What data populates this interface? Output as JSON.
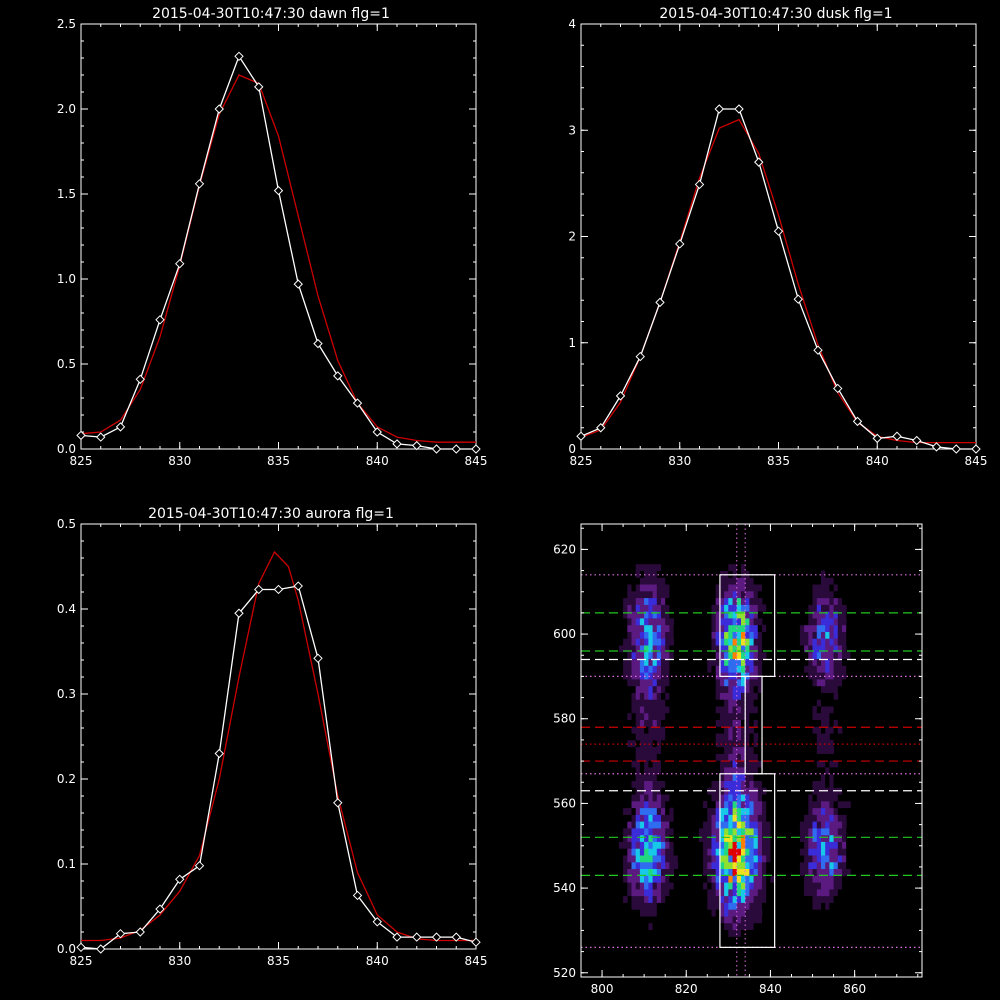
{
  "figure": {
    "background": "#000000",
    "axis_color": "#ffffff",
    "measured_color": "#ffffff",
    "fit_color": "#cc0000"
  },
  "chart_data": [
    {
      "id": "dawn",
      "type": "line",
      "title": "2015-04-30T10:47:30 dawn flg=1",
      "xlim": [
        825,
        845
      ],
      "ylim": [
        0,
        2.5
      ],
      "xticks": [
        "825",
        "830",
        "835",
        "840",
        "845"
      ],
      "yticks": [
        "0.0",
        "0.5",
        "1.0",
        "1.5",
        "2.0",
        "2.5"
      ],
      "series": [
        {
          "role": "measured",
          "color": "#ffffff",
          "marker": "diamond",
          "points": [
            [
              825,
              0.08
            ],
            [
              826,
              0.07
            ],
            [
              827,
              0.13
            ],
            [
              828,
              0.41
            ],
            [
              829,
              0.76
            ],
            [
              830,
              1.09
            ],
            [
              831,
              1.56
            ],
            [
              832,
              2.0
            ],
            [
              833,
              2.31
            ],
            [
              834,
              2.13
            ],
            [
              835,
              1.52
            ],
            [
              836,
              0.97
            ],
            [
              837,
              0.62
            ],
            [
              838,
              0.43
            ],
            [
              839,
              0.27
            ],
            [
              840,
              0.1
            ],
            [
              841,
              0.03
            ],
            [
              842,
              0.02
            ],
            [
              843,
              0.0
            ],
            [
              844,
              0.0
            ],
            [
              845,
              0.0
            ]
          ]
        },
        {
          "role": "fit",
          "color": "#cc0000",
          "points": [
            [
              825,
              0.09
            ],
            [
              826,
              0.1
            ],
            [
              827,
              0.17
            ],
            [
              828,
              0.35
            ],
            [
              829,
              0.66
            ],
            [
              830,
              1.08
            ],
            [
              831,
              1.55
            ],
            [
              832,
              1.97
            ],
            [
              833,
              2.2
            ],
            [
              834,
              2.15
            ],
            [
              835,
              1.84
            ],
            [
              836,
              1.37
            ],
            [
              837,
              0.9
            ],
            [
              838,
              0.52
            ],
            [
              839,
              0.27
            ],
            [
              840,
              0.13
            ],
            [
              841,
              0.07
            ],
            [
              842,
              0.05
            ],
            [
              843,
              0.04
            ],
            [
              844,
              0.04
            ],
            [
              845,
              0.04
            ]
          ]
        }
      ]
    },
    {
      "id": "dusk",
      "type": "line",
      "title": "2015-04-30T10:47:30 dusk flg=1",
      "xlim": [
        825,
        845
      ],
      "ylim": [
        0,
        4
      ],
      "xticks": [
        "825",
        "830",
        "835",
        "840",
        "845"
      ],
      "yticks": [
        "0",
        "1",
        "2",
        "3",
        "4"
      ],
      "series": [
        {
          "role": "measured",
          "color": "#ffffff",
          "marker": "diamond",
          "points": [
            [
              825,
              0.12
            ],
            [
              826,
              0.2
            ],
            [
              827,
              0.5
            ],
            [
              828,
              0.87
            ],
            [
              829,
              1.38
            ],
            [
              830,
              1.93
            ],
            [
              831,
              2.49
            ],
            [
              832,
              3.2
            ],
            [
              833,
              3.2
            ],
            [
              834,
              2.7
            ],
            [
              835,
              2.05
            ],
            [
              836,
              1.41
            ],
            [
              837,
              0.93
            ],
            [
              838,
              0.57
            ],
            [
              839,
              0.26
            ],
            [
              840,
              0.1
            ],
            [
              841,
              0.12
            ],
            [
              842,
              0.08
            ],
            [
              843,
              0.02
            ],
            [
              844,
              0.0
            ],
            [
              845,
              0.0
            ]
          ]
        },
        {
          "role": "fit",
          "color": "#cc0000",
          "points": [
            [
              825,
              0.11
            ],
            [
              826,
              0.18
            ],
            [
              827,
              0.44
            ],
            [
              828,
              0.87
            ],
            [
              829,
              1.38
            ],
            [
              830,
              1.95
            ],
            [
              831,
              2.55
            ],
            [
              832,
              3.02
            ],
            [
              833,
              3.1
            ],
            [
              834,
              2.78
            ],
            [
              835,
              2.2
            ],
            [
              836,
              1.55
            ],
            [
              837,
              0.98
            ],
            [
              838,
              0.53
            ],
            [
              839,
              0.25
            ],
            [
              840,
              0.12
            ],
            [
              841,
              0.08
            ],
            [
              842,
              0.06
            ],
            [
              843,
              0.06
            ],
            [
              844,
              0.06
            ],
            [
              845,
              0.06
            ]
          ]
        }
      ]
    },
    {
      "id": "aurora",
      "type": "line",
      "title": "2015-04-30T10:47:30 aurora flg=1",
      "xlim": [
        825,
        845
      ],
      "ylim": [
        0,
        0.5
      ],
      "xticks": [
        "825",
        "830",
        "835",
        "840",
        "845"
      ],
      "yticks": [
        "0.0",
        "0.1",
        "0.2",
        "0.3",
        "0.4",
        "0.5"
      ],
      "series": [
        {
          "role": "measured",
          "color": "#ffffff",
          "marker": "diamond",
          "points": [
            [
              825,
              0.002
            ],
            [
              826,
              0.0
            ],
            [
              827,
              0.018
            ],
            [
              828,
              0.02
            ],
            [
              829,
              0.047
            ],
            [
              830,
              0.082
            ],
            [
              831,
              0.098
            ],
            [
              832,
              0.23
            ],
            [
              833,
              0.395
            ],
            [
              834,
              0.423
            ],
            [
              835,
              0.423
            ],
            [
              836,
              0.427
            ],
            [
              837,
              0.342
            ],
            [
              838,
              0.172
            ],
            [
              839,
              0.063
            ],
            [
              840,
              0.032
            ],
            [
              841,
              0.014
            ],
            [
              842,
              0.014
            ],
            [
              843,
              0.014
            ],
            [
              844,
              0.014
            ],
            [
              845,
              0.008
            ]
          ]
        },
        {
          "role": "fit",
          "color": "#cc0000",
          "points": [
            [
              825,
              0.01
            ],
            [
              826,
              0.01
            ],
            [
              827,
              0.013
            ],
            [
              828,
              0.022
            ],
            [
              829,
              0.04
            ],
            [
              830,
              0.068
            ],
            [
              831,
              0.11
            ],
            [
              832,
              0.2
            ],
            [
              833,
              0.32
            ],
            [
              834,
              0.43
            ],
            [
              834.8,
              0.467
            ],
            [
              835.5,
              0.45
            ],
            [
              836,
              0.41
            ],
            [
              837,
              0.3
            ],
            [
              838,
              0.18
            ],
            [
              839,
              0.09
            ],
            [
              840,
              0.04
            ],
            [
              841,
              0.02
            ],
            [
              842,
              0.012
            ],
            [
              843,
              0.01
            ],
            [
              844,
              0.01
            ],
            [
              845,
              0.01
            ]
          ]
        }
      ]
    },
    {
      "id": "image",
      "type": "heatmap",
      "title": "",
      "xlim": [
        795,
        876
      ],
      "ylim": [
        519,
        626
      ],
      "xticks": [
        "800",
        "820",
        "840",
        "860"
      ],
      "yticks": [
        "520",
        "540",
        "560",
        "580",
        "600",
        "620"
      ],
      "blobs": [
        {
          "x": 811,
          "y": 599,
          "sx": 3.0,
          "sy": 9,
          "amp": 0.45
        },
        {
          "x": 832,
          "y": 599,
          "sx": 3.0,
          "sy": 8,
          "amp": 0.72
        },
        {
          "x": 853,
          "y": 600,
          "sx": 3.0,
          "sy": 7,
          "amp": 0.35
        },
        {
          "x": 811,
          "y": 549,
          "sx": 3.0,
          "sy": 8,
          "amp": 0.55
        },
        {
          "x": 832,
          "y": 549,
          "sx": 3.5,
          "sy": 9,
          "amp": 0.9
        },
        {
          "x": 853,
          "y": 549,
          "sx": 3.0,
          "sy": 7,
          "amp": 0.42
        },
        {
          "x": 811,
          "y": 575,
          "sx": 3.0,
          "sy": 12,
          "amp": 0.1
        },
        {
          "x": 832,
          "y": 575,
          "sx": 3.0,
          "sy": 12,
          "amp": 0.14
        },
        {
          "x": 853,
          "y": 575,
          "sx": 3.0,
          "sy": 12,
          "amp": 0.08
        }
      ],
      "colormap": [
        "#000000",
        "#2a0a3a",
        "#5a1a80",
        "#3a2cd8",
        "#2f6cf0",
        "#18c8e8",
        "#20d880",
        "#90e030",
        "#f0e020",
        "#ff8000",
        "#e00000"
      ],
      "boxes": [
        {
          "x": [
            828,
            841
          ],
          "y": [
            590,
            614
          ],
          "color": "#ffffff"
        },
        {
          "x": [
            828,
            841
          ],
          "y": [
            526,
            567
          ],
          "color": "#ffffff"
        },
        {
          "x": [
            834,
            838
          ],
          "y": [
            567,
            590
          ],
          "color": "#ffffff"
        }
      ],
      "vertical_dotted_x": [
        832,
        834
      ],
      "hlines": [
        {
          "y": 614,
          "color": "#e070e0",
          "style": "dotted"
        },
        {
          "y": 605,
          "color": "#20c820",
          "style": "dashed"
        },
        {
          "y": 596,
          "color": "#20c820",
          "style": "dashed"
        },
        {
          "y": 594,
          "color": "#ffffff",
          "style": "dashed"
        },
        {
          "y": 590,
          "color": "#e070e0",
          "style": "dotted"
        },
        {
          "y": 578,
          "color": "#cc0000",
          "style": "dashed"
        },
        {
          "y": 574,
          "color": "#cc0000",
          "style": "dotted"
        },
        {
          "y": 570,
          "color": "#cc0000",
          "style": "dashed"
        },
        {
          "y": 567,
          "color": "#e070e0",
          "style": "dotted"
        },
        {
          "y": 563,
          "color": "#ffffff",
          "style": "dashed"
        },
        {
          "y": 552,
          "color": "#20c820",
          "style": "dashed"
        },
        {
          "y": 543,
          "color": "#20c820",
          "style": "dashed"
        },
        {
          "y": 526,
          "color": "#e070e0",
          "style": "dotted"
        }
      ]
    }
  ]
}
